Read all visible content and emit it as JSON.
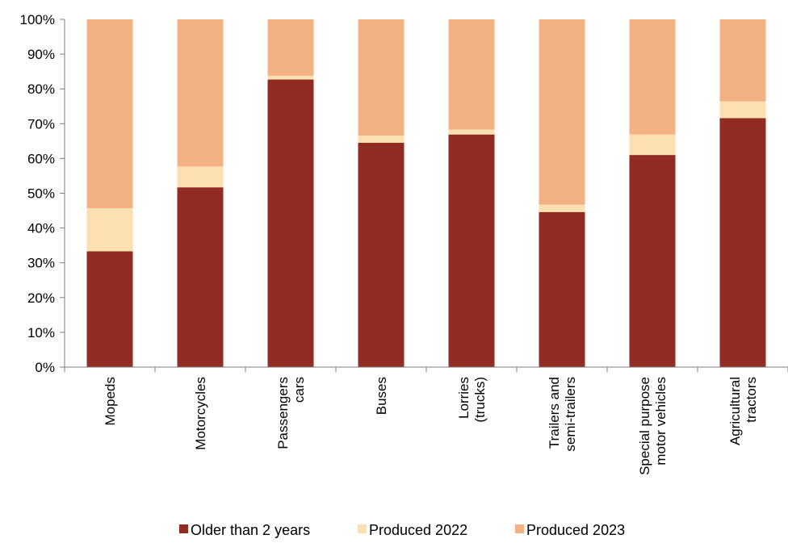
{
  "chart_data": {
    "type": "bar",
    "stacked": true,
    "percent_stacked": true,
    "categories": [
      [
        "Mopeds"
      ],
      [
        "Motorcycles"
      ],
      [
        "Passengers",
        "cars"
      ],
      [
        "Buses"
      ],
      [
        "Lorries",
        "(trucks)"
      ],
      [
        "Trailers and",
        "semi-trailers"
      ],
      [
        "Special purpose",
        "motor vehicles"
      ],
      [
        "Agricultural",
        "tractors"
      ]
    ],
    "series": [
      {
        "name": "Older than 2 years",
        "color": "#922B21",
        "values": [
          33.3,
          51.7,
          82.7,
          64.5,
          66.9,
          44.6,
          61.0,
          71.6
        ]
      },
      {
        "name": "Produced 2022",
        "color": "#FDE0B2",
        "values": [
          12.4,
          6.0,
          1.1,
          2.1,
          1.4,
          2.1,
          5.9,
          4.8
        ]
      },
      {
        "name": "Produced 2023",
        "color": "#F3B184",
        "values": [
          54.3,
          42.3,
          16.2,
          33.4,
          31.7,
          53.3,
          33.1,
          23.6
        ]
      }
    ],
    "y_ticks": [
      "0%",
      "10%",
      "20%",
      "30%",
      "40%",
      "50%",
      "60%",
      "70%",
      "80%",
      "90%",
      "100%"
    ],
    "ylim": [
      0,
      100
    ],
    "grid": false,
    "legend_position": "bottom"
  }
}
